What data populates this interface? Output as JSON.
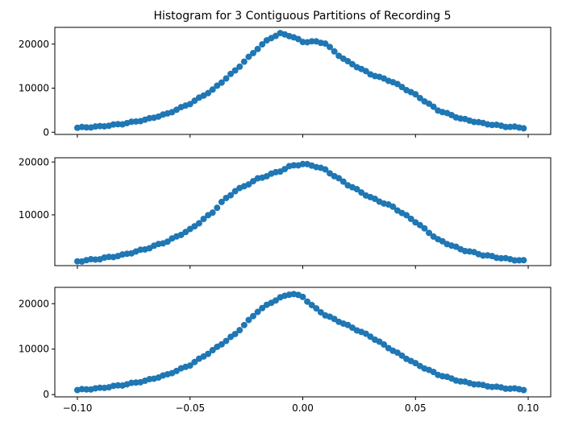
{
  "chart_data": {
    "type": "scatter",
    "title": "Histogram for 3 Contiguous Partitions of Recording 5",
    "xlim": [
      -0.11,
      0.11
    ],
    "x_ticks": [
      -0.1,
      -0.05,
      0.0,
      0.05,
      0.1
    ],
    "x_tick_labels": [
      "−0.10",
      "−0.05",
      "0.00",
      "0.05",
      "0.10"
    ],
    "x": {
      "start": -0.1,
      "end": 0.098,
      "count": 100
    },
    "marker_color": "#1f77b4",
    "panels": [
      {
        "ylim": [
          -500,
          23800
        ],
        "y_ticks": [
          0,
          10000,
          20000
        ],
        "y_tick_labels": [
          "0",
          "10000",
          "20000"
        ],
        "anchors": [
          [
            -0.1,
            1000
          ],
          [
            -0.09,
            1300
          ],
          [
            -0.08,
            1900
          ],
          [
            -0.07,
            2800
          ],
          [
            -0.06,
            4200
          ],
          [
            -0.05,
            6500
          ],
          [
            -0.04,
            9600
          ],
          [
            -0.03,
            14000
          ],
          [
            -0.02,
            19000
          ],
          [
            -0.015,
            21200
          ],
          [
            -0.01,
            22400
          ],
          [
            -0.005,
            21800
          ],
          [
            0.0,
            20500
          ],
          [
            0.005,
            20600
          ],
          [
            0.01,
            20200
          ],
          [
            0.015,
            17800
          ],
          [
            0.02,
            16000
          ],
          [
            0.03,
            13200
          ],
          [
            0.04,
            11400
          ],
          [
            0.05,
            8500
          ],
          [
            0.06,
            5000
          ],
          [
            0.07,
            3100
          ],
          [
            0.08,
            2000
          ],
          [
            0.09,
            1300
          ],
          [
            0.098,
            1000
          ]
        ]
      },
      {
        "ylim": [
          400,
          20800
        ],
        "y_ticks": [
          10000,
          20000
        ],
        "y_tick_labels": [
          "10000",
          "20000"
        ],
        "anchors": [
          [
            -0.1,
            1200
          ],
          [
            -0.09,
            1700
          ],
          [
            -0.08,
            2400
          ],
          [
            -0.07,
            3500
          ],
          [
            -0.06,
            5000
          ],
          [
            -0.05,
            7200
          ],
          [
            -0.04,
            10500
          ],
          [
            -0.035,
            12800
          ],
          [
            -0.03,
            14500
          ],
          [
            -0.02,
            16800
          ],
          [
            -0.01,
            18300
          ],
          [
            -0.005,
            19300
          ],
          [
            0.0,
            19600
          ],
          [
            0.005,
            19300
          ],
          [
            0.01,
            18500
          ],
          [
            0.02,
            15700
          ],
          [
            0.03,
            13300
          ],
          [
            0.04,
            11500
          ],
          [
            0.05,
            8700
          ],
          [
            0.06,
            5300
          ],
          [
            0.07,
            3500
          ],
          [
            0.08,
            2400
          ],
          [
            0.09,
            1700
          ],
          [
            0.098,
            1300
          ]
        ]
      },
      {
        "ylim": [
          -500,
          23600
        ],
        "y_ticks": [
          0,
          10000,
          20000
        ],
        "y_tick_labels": [
          "0",
          "10000",
          "20000"
        ],
        "anchors": [
          [
            -0.1,
            1000
          ],
          [
            -0.09,
            1400
          ],
          [
            -0.08,
            2100
          ],
          [
            -0.07,
            3000
          ],
          [
            -0.06,
            4400
          ],
          [
            -0.05,
            6500
          ],
          [
            -0.04,
            9700
          ],
          [
            -0.03,
            13300
          ],
          [
            -0.02,
            18300
          ],
          [
            -0.015,
            20000
          ],
          [
            -0.01,
            21300
          ],
          [
            -0.005,
            22300
          ],
          [
            0.0,
            21500
          ],
          [
            0.005,
            19200
          ],
          [
            0.01,
            17500
          ],
          [
            0.02,
            15200
          ],
          [
            0.03,
            12800
          ],
          [
            0.04,
            9700
          ],
          [
            0.05,
            6800
          ],
          [
            0.06,
            4400
          ],
          [
            0.07,
            2900
          ],
          [
            0.08,
            2000
          ],
          [
            0.09,
            1400
          ],
          [
            0.098,
            1100
          ]
        ]
      }
    ]
  }
}
